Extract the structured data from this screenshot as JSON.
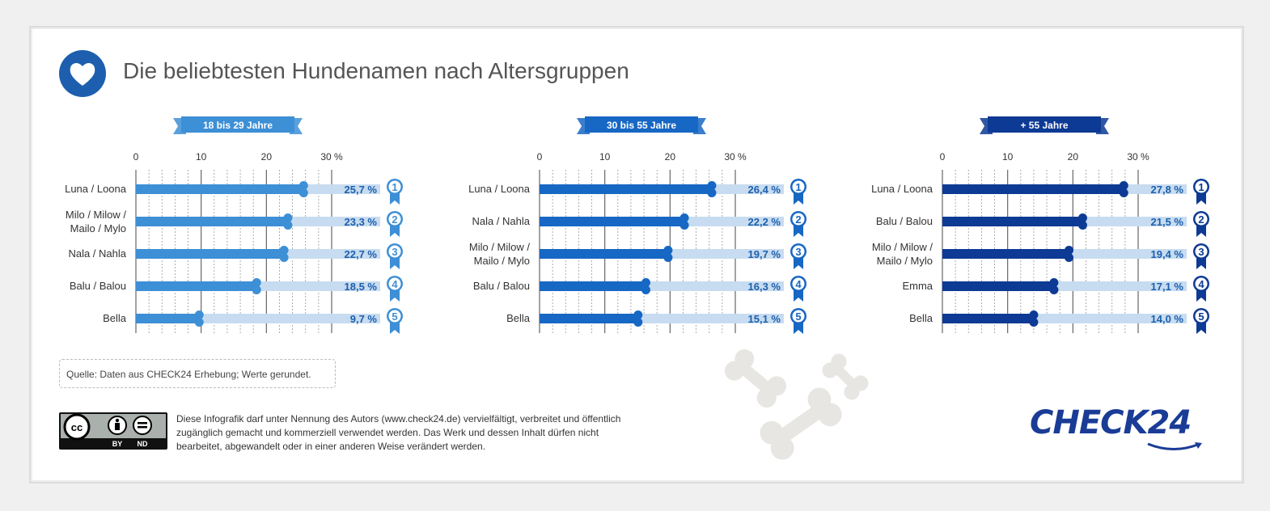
{
  "title": "Die beliebtesten Hundenamen nach Altersgruppen",
  "source": "Quelle: Daten aus CHECK24 Erhebung; Werte gerundet.",
  "license": "Diese Infografik darf unter Nennung des Autors (www.check24.de) vervielfältigt, verbreitet und öffentlich zugänglich gemacht und kommerziell verwendet werden. Das Werk und dessen Inhalt dürfen nicht bearbeitet, abgewandelt oder in einer anderen Weise verändert werden.",
  "cc_badge": {
    "by": "BY",
    "nd": "ND"
  },
  "logo": "CHECK24",
  "chart_data": [
    {
      "type": "bar",
      "title": "18 bis 29 Jahre",
      "xlim": [
        0,
        30
      ],
      "ticks": [
        "0",
        "10",
        "20",
        "30 %"
      ],
      "categories": [
        [
          "Luna / Loona"
        ],
        [
          "Milo / Milow /",
          "Mailo / Mylo"
        ],
        [
          "Nala / Nahla"
        ],
        [
          "Balu / Balou"
        ],
        [
          "Bella"
        ]
      ],
      "values": [
        25.7,
        23.3,
        22.7,
        18.5,
        9.7
      ],
      "value_labels": [
        "25,7 %",
        "23,3 %",
        "22,7 %",
        "18,5 %",
        "9,7 %"
      ],
      "ranks": [
        "1",
        "2",
        "3",
        "4",
        "5"
      ],
      "color": "#3d8fd6"
    },
    {
      "type": "bar",
      "title": "30 bis 55 Jahre",
      "xlim": [
        0,
        30
      ],
      "ticks": [
        "0",
        "10",
        "20",
        "30 %"
      ],
      "categories": [
        [
          "Luna / Loona"
        ],
        [
          "Nala / Nahla"
        ],
        [
          "Milo / Milow /",
          "Mailo / Mylo"
        ],
        [
          "Balu / Balou"
        ],
        [
          "Bella"
        ]
      ],
      "values": [
        26.4,
        22.2,
        19.7,
        16.3,
        15.1
      ],
      "value_labels": [
        "26,4 %",
        "22,2 %",
        "19,7 %",
        "16,3 %",
        "15,1 %"
      ],
      "ranks": [
        "1",
        "2",
        "3",
        "4",
        "5"
      ],
      "color": "#1767c4"
    },
    {
      "type": "bar",
      "title": "+ 55 Jahre",
      "xlim": [
        0,
        30
      ],
      "ticks": [
        "0",
        "10",
        "20",
        "30 %"
      ],
      "categories": [
        [
          "Luna / Loona"
        ],
        [
          "Balu / Balou"
        ],
        [
          "Milo / Milow /",
          "Mailo / Mylo"
        ],
        [
          "Emma"
        ],
        [
          "Bella"
        ]
      ],
      "values": [
        27.8,
        21.5,
        19.4,
        17.1,
        14.0
      ],
      "value_labels": [
        "27,8 %",
        "21,5 %",
        "19,4 %",
        "17,1 %",
        "14,0 %"
      ],
      "ranks": [
        "1",
        "2",
        "3",
        "4",
        "5"
      ],
      "color": "#0d3a94"
    }
  ],
  "colors": {
    "label_blue": "#1d5fae",
    "track": "#c7dcf0",
    "text": "#444444"
  }
}
